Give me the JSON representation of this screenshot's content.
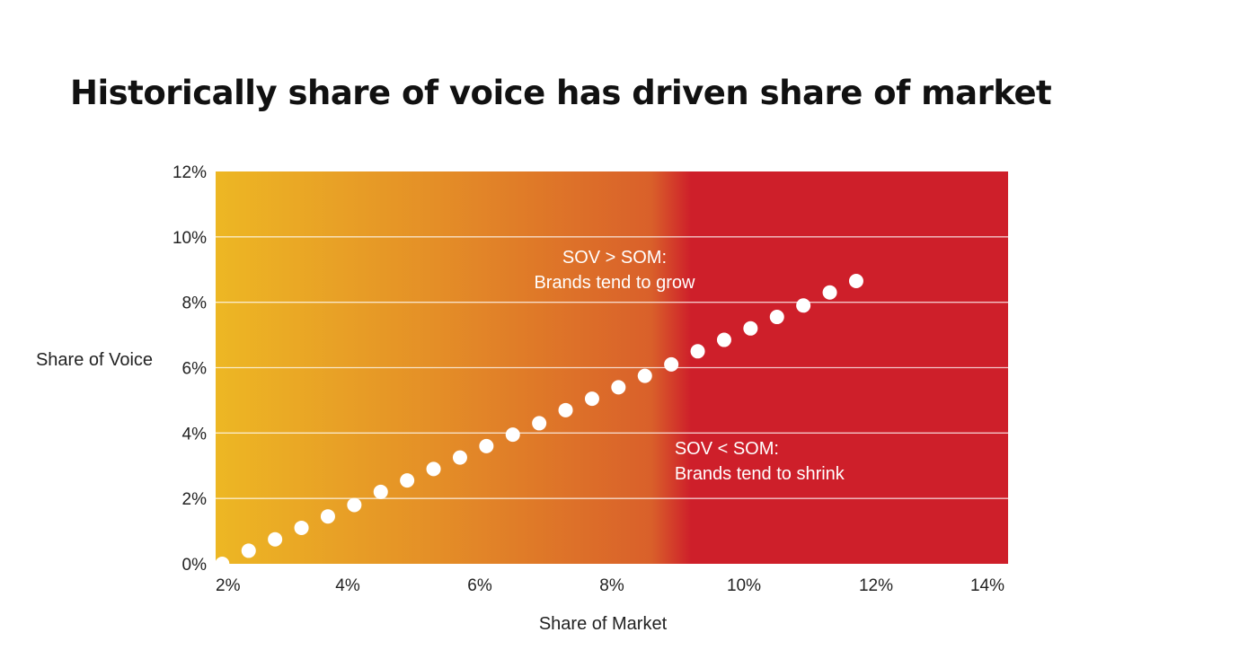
{
  "chart_data": {
    "type": "scatter",
    "title": "Historically share of voice has driven share of market",
    "xlabel": "Share of Market",
    "ylabel": "Share of Voice",
    "xlim": [
      2,
      14
    ],
    "ylim": [
      0,
      12
    ],
    "x_ticks": [
      "2%",
      "4%",
      "6%",
      "8%",
      "10%",
      "12%",
      "14%"
    ],
    "y_ticks": [
      "0%",
      "2%",
      "4%",
      "6%",
      "8%",
      "10%",
      "12%"
    ],
    "x_tick_values": [
      2,
      4,
      6,
      8,
      10,
      12,
      14
    ],
    "y_tick_values": [
      0,
      2,
      4,
      6,
      8,
      10,
      12
    ],
    "grid": true,
    "background_gradient": [
      "#EDB724",
      "#E48E27",
      "#D9602A",
      "#CE1F2A"
    ],
    "point_color": "#ffffff",
    "annotations": [
      {
        "lines": [
          "SOV > SOM:",
          "Brands tend to grow"
        ],
        "x": 8.04,
        "y": 9.2,
        "align": "middle"
      },
      {
        "lines": [
          "SOV < SOM:",
          "Brands tend to shrink"
        ],
        "x": 8.95,
        "y": 3.35,
        "align": "start"
      }
    ],
    "x": [
      2.1,
      2.5,
      2.9,
      3.3,
      3.7,
      4.1,
      4.5,
      4.9,
      5.3,
      5.7,
      6.1,
      6.5,
      6.9,
      7.3,
      7.7,
      8.1,
      8.5,
      8.9,
      9.3,
      9.7,
      10.1,
      10.5,
      10.9,
      11.3,
      11.7
    ],
    "y": [
      0.0,
      0.4,
      0.75,
      1.1,
      1.45,
      1.8,
      2.2,
      2.55,
      2.9,
      3.25,
      3.6,
      3.95,
      4.3,
      4.7,
      5.05,
      5.4,
      5.75,
      6.1,
      6.5,
      6.85,
      7.2,
      7.55,
      7.9,
      8.3,
      8.65
    ]
  }
}
